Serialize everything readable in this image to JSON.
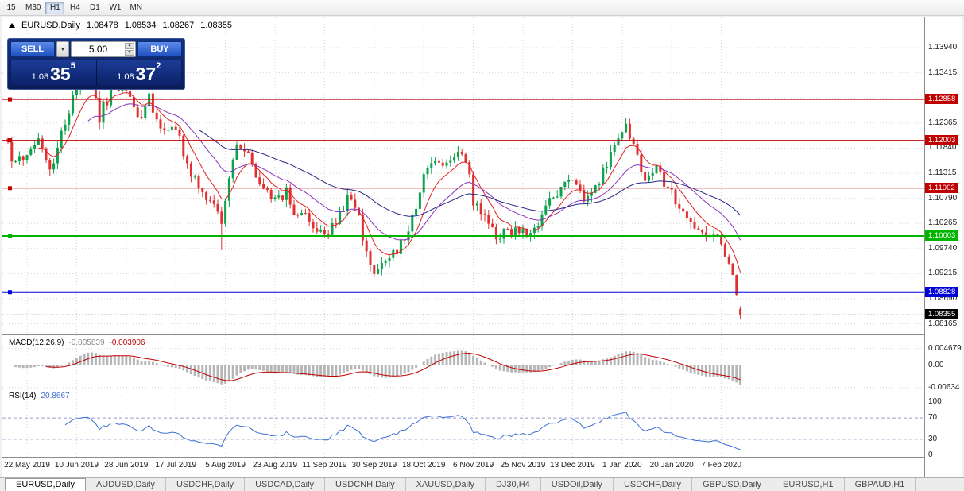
{
  "toolbar": {
    "timeframes": [
      {
        "label": "15",
        "active": false
      },
      {
        "label": "M30",
        "active": false
      },
      {
        "label": "H1",
        "active": true
      },
      {
        "label": "H4",
        "active": false
      },
      {
        "label": "D1",
        "active": false
      },
      {
        "label": "W1",
        "active": false
      },
      {
        "label": "MN",
        "active": false
      }
    ]
  },
  "header": {
    "symbol_title": "EURUSD,Daily",
    "open": "1.08478",
    "high": "1.08534",
    "low": "1.08267",
    "close": "1.08355"
  },
  "trade_panel": {
    "sell_label": "SELL",
    "buy_label": "BUY",
    "lot_size": "5.00",
    "sell_price_small": "1.08",
    "sell_price_big": "35",
    "sell_price_sup": "5",
    "buy_price_small": "1.08",
    "buy_price_big": "37",
    "buy_price_sup": "2"
  },
  "indicators": {
    "macd_title": "MACD(12,26,9)",
    "macd_value": "-0.005839",
    "macd_signal": "-0.003906",
    "rsi_title": "RSI(14)",
    "rsi_value": "20.8667"
  },
  "axes": {
    "price_labels": [
      "1.13940",
      "1.13415",
      "1.12890",
      "1.12365",
      "1.11840",
      "1.11315",
      "1.10790",
      "1.10265",
      "1.09740",
      "1.09215",
      "1.08690",
      "1.08165"
    ],
    "macd_labels": [
      "0.004679",
      "0.00",
      "-0.00634"
    ],
    "rsi_labels": [
      "100",
      "70",
      "30",
      "0"
    ]
  },
  "levels": [
    {
      "label": "1.12858",
      "price": 1.12858,
      "color": "#c00000",
      "width": 1
    },
    {
      "label": "1.12003",
      "price": 1.12003,
      "color": "#c00000",
      "width": 1
    },
    {
      "label": "1.11002",
      "price": 1.11002,
      "color": "#c00000",
      "width": 1
    },
    {
      "label": "1.10003",
      "price": 1.10003,
      "color": "#00b400",
      "width": 2
    },
    {
      "label": "1.08828",
      "price": 1.08828,
      "color": "#0000d8",
      "width": 2
    }
  ],
  "current_price": {
    "label": "1.08355",
    "price": 1.08355,
    "color": "#000000"
  },
  "bottom_tabs": [
    {
      "label": "EURUSD,Daily",
      "active": true
    },
    {
      "label": "AUDUSD,Daily",
      "active": false
    },
    {
      "label": "USDCHF,Daily",
      "active": false
    },
    {
      "label": "USDCAD,Daily",
      "active": false
    },
    {
      "label": "USDCNH,Daily",
      "active": false
    },
    {
      "label": "XAUUSD,Daily",
      "active": false
    },
    {
      "label": "DJ30,H4",
      "active": false
    },
    {
      "label": "USDOil,Daily",
      "active": false
    },
    {
      "label": "USDCHF,Daily",
      "active": false
    },
    {
      "label": "GBPUSD,Daily",
      "active": false
    },
    {
      "label": "EURUSD,H1",
      "active": false
    },
    {
      "label": "GBPAUD,H1",
      "active": false
    }
  ],
  "chart_data": {
    "type": "candlestick",
    "symbol": "EURUSD",
    "timeframe": "Daily",
    "candle_count": 193,
    "x_labels": [
      "22 May 2019",
      "10 Jun 2019",
      "28 Jun 2019",
      "17 Jul 2019",
      "5 Aug 2019",
      "23 Aug 2019",
      "11 Sep 2019",
      "30 Sep 2019",
      "18 Oct 2019",
      "6 Nov 2019",
      "25 Nov 2019",
      "13 Dec 2019",
      "1 Jan 2020",
      "20 Jan 2020",
      "7 Feb 2020"
    ],
    "x_label_offset": 5,
    "x_label_step": 13,
    "y_axis_top": 1.1394,
    "y_axis_step": 0.00525,
    "ohlc_last": {
      "open": 1.08478,
      "high": 1.08534,
      "low": 1.08267,
      "close": 1.08355
    },
    "close_anchors": [
      [
        0,
        1.1185
      ],
      [
        2,
        1.115
      ],
      [
        5,
        1.1175
      ],
      [
        8,
        1.1215
      ],
      [
        11,
        1.1135
      ],
      [
        15,
        1.124
      ],
      [
        18,
        1.131
      ],
      [
        21,
        1.134
      ],
      [
        24,
        1.125
      ],
      [
        28,
        1.132
      ],
      [
        31,
        1.13
      ],
      [
        34,
        1.124
      ],
      [
        37,
        1.129
      ],
      [
        40,
        1.123
      ],
      [
        44,
        1.1225
      ],
      [
        48,
        1.113
      ],
      [
        51,
        1.11
      ],
      [
        54,
        1.106
      ],
      [
        56,
        1.103
      ],
      [
        58,
        1.111
      ],
      [
        60,
        1.1195
      ],
      [
        63,
        1.1165
      ],
      [
        66,
        1.111
      ],
      [
        70,
        1.1075
      ],
      [
        73,
        1.109
      ],
      [
        76,
        1.104
      ],
      [
        79,
        1.1035
      ],
      [
        83,
        1.1
      ],
      [
        86,
        1.1035
      ],
      [
        89,
        1.1075
      ],
      [
        92,
        1.104
      ],
      [
        94,
        1.096
      ],
      [
        96,
        1.092
      ],
      [
        98,
        1.0935
      ],
      [
        101,
        1.096
      ],
      [
        104,
        1.0995
      ],
      [
        107,
        1.106
      ],
      [
        109,
        1.113
      ],
      [
        112,
        1.116
      ],
      [
        115,
        1.115
      ],
      [
        118,
        1.1175
      ],
      [
        120,
        1.116
      ],
      [
        122,
        1.1075
      ],
      [
        125,
        1.1035
      ],
      [
        128,
        1.1005
      ],
      [
        131,
        1.101
      ],
      [
        134,
        1.1015
      ],
      [
        136,
        1.0995
      ],
      [
        139,
        1.1015
      ],
      [
        142,
        1.1075
      ],
      [
        145,
        1.11
      ],
      [
        148,
        1.1125
      ],
      [
        151,
        1.108
      ],
      [
        154,
        1.1095
      ],
      [
        157,
        1.115
      ],
      [
        160,
        1.12
      ],
      [
        162,
        1.1225
      ],
      [
        164,
        1.118
      ],
      [
        167,
        1.112
      ],
      [
        170,
        1.1155
      ],
      [
        172,
        1.1105
      ],
      [
        174,
        1.109
      ],
      [
        177,
        1.104
      ],
      [
        180,
        1.102
      ],
      [
        183,
        1.1
      ],
      [
        185,
        1.1015
      ],
      [
        187,
        1.098
      ],
      [
        189,
        1.094
      ],
      [
        190,
        1.0915
      ],
      [
        191,
        1.0875
      ],
      [
        192,
        1.08355
      ]
    ],
    "up_color": "#0ca24e",
    "down_color": "#e03030",
    "moving_averages": [
      {
        "type": "ema",
        "period": 8,
        "color": "#e02020"
      },
      {
        "type": "ema",
        "period": 21,
        "color": "#8833bb"
      },
      {
        "type": "ema",
        "period": 50,
        "color": "#262688"
      }
    ],
    "macd": {
      "params": [
        12,
        26,
        9
      ],
      "histogram_color": "#b6b6b6",
      "signal_color": "#c00000",
      "axis_max": 0.0078,
      "axis_min": -0.0064
    },
    "rsi": {
      "period": 14,
      "last": 20.8667,
      "levels": [
        70,
        30
      ],
      "line_color": "#3b6fd4"
    }
  }
}
